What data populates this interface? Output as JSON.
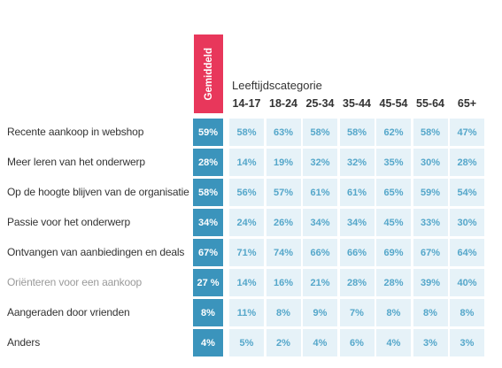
{
  "colors": {
    "average_header": "#e8375b",
    "average_cell": "#3b94bc",
    "value_cell_bg": "#e6f2f8",
    "value_cell_text": "#55a7ca",
    "label_text": "#333333",
    "muted_label_text": "#9a9a9a"
  },
  "chart_data": {
    "type": "table",
    "average_label": "Gemiddeld",
    "column_group_label": "Leeftijdscategorie",
    "columns": [
      "14-17",
      "18-24",
      "25-34",
      "35-44",
      "45-54",
      "55-64",
      "65+"
    ],
    "rows": [
      {
        "label": "Recente aankoop in webshop",
        "average": "59%",
        "values": [
          "58%",
          "63%",
          "58%",
          "58%",
          "62%",
          "58%",
          "47%"
        ]
      },
      {
        "label": "Meer leren van het onderwerp",
        "average": "28%",
        "values": [
          "14%",
          "19%",
          "32%",
          "32%",
          "35%",
          "30%",
          "28%"
        ]
      },
      {
        "label": "Op de hoogte blijven van de organisatie",
        "average": "58%",
        "values": [
          "56%",
          "57%",
          "61%",
          "61%",
          "65%",
          "59%",
          "54%"
        ]
      },
      {
        "label": "Passie voor het onderwerp",
        "average": "34%",
        "values": [
          "24%",
          "26%",
          "34%",
          "34%",
          "45%",
          "33%",
          "30%"
        ]
      },
      {
        "label": "Ontvangen van aanbiedingen en deals",
        "average": "67%",
        "values": [
          "71%",
          "74%",
          "66%",
          "66%",
          "69%",
          "67%",
          "64%"
        ]
      },
      {
        "label": "Oriënteren voor een aankoop",
        "muted": true,
        "average": "27 %",
        "values": [
          "14%",
          "16%",
          "21%",
          "28%",
          "28%",
          "39%",
          "40%"
        ]
      },
      {
        "label": "Aangeraden door vrienden",
        "average": "8%",
        "values": [
          "11%",
          "8%",
          "9%",
          "7%",
          "8%",
          "8%",
          "8%"
        ]
      },
      {
        "label": "Anders",
        "average": "4%",
        "values": [
          "5%",
          "2%",
          "4%",
          "6%",
          "4%",
          "3%",
          "3%"
        ]
      }
    ]
  }
}
